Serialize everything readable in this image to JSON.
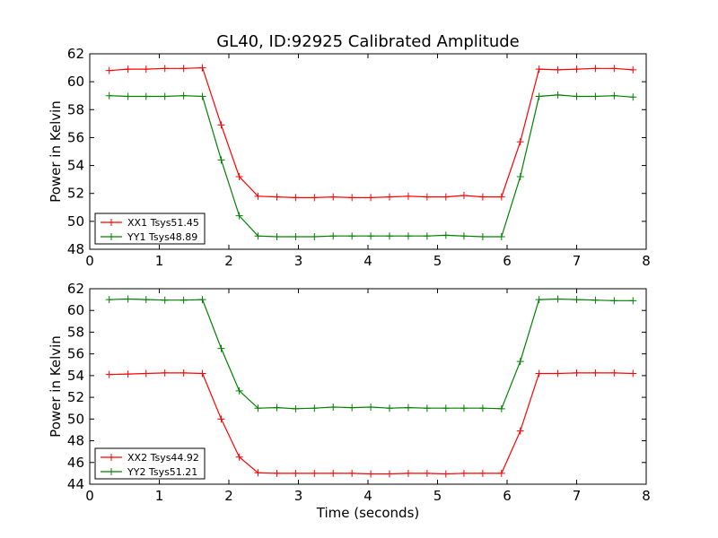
{
  "figure": {
    "title": "GL40, ID:92925 Calibrated Amplitude"
  },
  "colors": {
    "xx": "#ff0000",
    "yy": "#008000"
  },
  "chart_data": [
    {
      "type": "line",
      "ylabel": "Power in Kelvin",
      "xlabel": "",
      "xlim": [
        0,
        8
      ],
      "ylim": [
        48,
        62
      ],
      "xticks": [
        0,
        1,
        2,
        3,
        4,
        5,
        6,
        7,
        8
      ],
      "yticks": [
        48,
        50,
        52,
        54,
        56,
        58,
        60,
        62
      ],
      "legend": "lower-left",
      "x": [
        0.28,
        0.55,
        0.81,
        1.08,
        1.35,
        1.62,
        1.89,
        2.15,
        2.42,
        2.69,
        2.96,
        3.23,
        3.5,
        3.77,
        4.04,
        4.31,
        4.58,
        4.85,
        5.12,
        5.38,
        5.65,
        5.92,
        6.19,
        6.46,
        6.73,
        7.0,
        7.27,
        7.54,
        7.81
      ],
      "series": [
        {
          "name": "XX1 Tsys51.45",
          "color": "#ff0000",
          "values": [
            60.8,
            60.9,
            60.9,
            60.95,
            60.95,
            61.0,
            56.9,
            53.2,
            51.8,
            51.75,
            51.7,
            51.7,
            51.75,
            51.7,
            51.7,
            51.75,
            51.8,
            51.75,
            51.75,
            51.85,
            51.75,
            51.75,
            55.7,
            60.9,
            60.85,
            60.9,
            60.95,
            60.95,
            60.85
          ]
        },
        {
          "name": "YY1 Tsys48.89",
          "color": "#008000",
          "values": [
            59.0,
            58.95,
            58.95,
            58.95,
            59.0,
            58.95,
            54.4,
            50.4,
            48.95,
            48.9,
            48.9,
            48.9,
            48.95,
            48.95,
            48.95,
            48.95,
            48.95,
            48.95,
            49.0,
            48.95,
            48.9,
            48.9,
            53.2,
            58.95,
            59.05,
            58.95,
            58.95,
            59.0,
            58.9
          ]
        }
      ]
    },
    {
      "type": "line",
      "ylabel": "Power in Kelvin",
      "xlabel": "Time (seconds)",
      "xlim": [
        0,
        8
      ],
      "ylim": [
        44,
        62
      ],
      "xticks": [
        0,
        1,
        2,
        3,
        4,
        5,
        6,
        7,
        8
      ],
      "yticks": [
        44,
        46,
        48,
        50,
        52,
        54,
        56,
        58,
        60,
        62
      ],
      "legend": "lower-left",
      "x": [
        0.28,
        0.55,
        0.81,
        1.08,
        1.35,
        1.62,
        1.89,
        2.15,
        2.42,
        2.69,
        2.96,
        3.23,
        3.5,
        3.77,
        4.04,
        4.31,
        4.58,
        4.85,
        5.12,
        5.38,
        5.65,
        5.92,
        6.19,
        6.46,
        6.73,
        7.0,
        7.27,
        7.54,
        7.81
      ],
      "series": [
        {
          "name": "XX2 Tsys44.92",
          "color": "#ff0000",
          "values": [
            54.1,
            54.15,
            54.2,
            54.25,
            54.25,
            54.2,
            50.0,
            46.5,
            45.05,
            45.0,
            45.0,
            45.0,
            45.0,
            45.0,
            44.95,
            44.95,
            45.0,
            45.0,
            44.95,
            45.0,
            45.0,
            45.0,
            48.9,
            54.2,
            54.2,
            54.25,
            54.25,
            54.25,
            54.2
          ]
        },
        {
          "name": "YY2 Tsys51.21",
          "color": "#008000",
          "values": [
            61.0,
            61.05,
            61.0,
            60.95,
            60.95,
            61.0,
            56.5,
            52.6,
            51.0,
            51.05,
            50.95,
            51.0,
            51.1,
            51.05,
            51.1,
            51.0,
            51.05,
            51.0,
            51.0,
            51.0,
            51.0,
            50.95,
            55.3,
            61.0,
            61.05,
            61.0,
            60.95,
            60.9,
            60.9
          ]
        }
      ]
    }
  ]
}
